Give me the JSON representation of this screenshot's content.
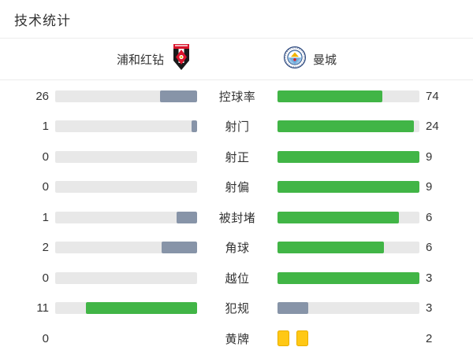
{
  "title": "技术统计",
  "teams": {
    "home": {
      "name": "浦和红钻",
      "logo_icon": "urawa-red-diamonds-crest"
    },
    "away": {
      "name": "曼城",
      "logo_icon": "manchester-city-badge"
    }
  },
  "colors": {
    "green": "#41b546",
    "slate": "#8794a8",
    "track": "#e8e8e8",
    "card_yellow": "#ffc815",
    "card_yellow_border": "#e9ae00",
    "divider": "#ececec",
    "text": "#333333"
  },
  "rows": [
    {
      "label": "控球率",
      "home_value": "26",
      "away_value": "74",
      "home_pct": 26,
      "away_pct": 74,
      "home_color": "slate",
      "away_color": "green"
    },
    {
      "label": "射门",
      "home_value": "1",
      "away_value": "24",
      "home_pct": 4,
      "away_pct": 96,
      "home_color": "slate",
      "away_color": "green"
    },
    {
      "label": "射正",
      "home_value": "0",
      "away_value": "9",
      "home_pct": 0,
      "away_pct": 100,
      "home_color": "slate",
      "away_color": "green"
    },
    {
      "label": "射偏",
      "home_value": "0",
      "away_value": "9",
      "home_pct": 0,
      "away_pct": 100,
      "home_color": "slate",
      "away_color": "green"
    },
    {
      "label": "被封堵",
      "home_value": "1",
      "away_value": "6",
      "home_pct": 14.3,
      "away_pct": 85.7,
      "home_color": "slate",
      "away_color": "green"
    },
    {
      "label": "角球",
      "home_value": "2",
      "away_value": "6",
      "home_pct": 25,
      "away_pct": 75,
      "home_color": "slate",
      "away_color": "green"
    },
    {
      "label": "越位",
      "home_value": "0",
      "away_value": "3",
      "home_pct": 0,
      "away_pct": 100,
      "home_color": "slate",
      "away_color": "green"
    },
    {
      "label": "犯规",
      "home_value": "11",
      "away_value": "3",
      "home_pct": 78.6,
      "away_pct": 21.4,
      "home_color": "green",
      "away_color": "slate"
    },
    {
      "label": "黄牌",
      "home_value": "0",
      "away_value": "2",
      "home_bar": false,
      "away_cards": 2
    }
  ],
  "chart_data": {
    "type": "bar",
    "categories": [
      "控球率",
      "射门",
      "射正",
      "射偏",
      "被封堵",
      "角球",
      "越位",
      "犯规",
      "黄牌"
    ],
    "series": [
      {
        "name": "浦和红钻",
        "values": [
          26,
          1,
          0,
          0,
          1,
          2,
          0,
          11,
          0
        ]
      },
      {
        "name": "曼城",
        "values": [
          74,
          24,
          9,
          9,
          6,
          6,
          3,
          3,
          2
        ]
      }
    ],
    "title": "技术统计",
    "legend_position": "top",
    "grid": false
  }
}
